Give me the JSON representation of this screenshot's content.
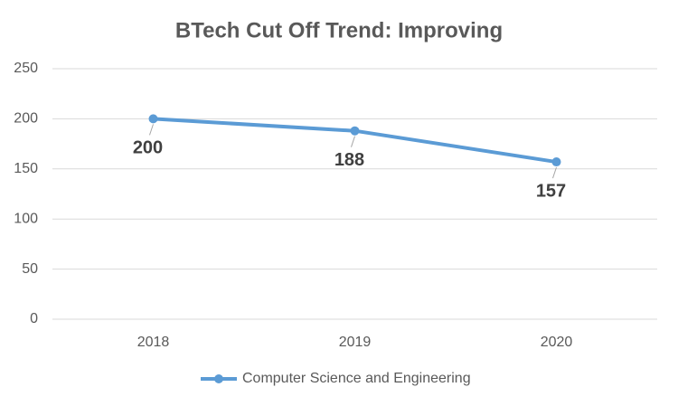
{
  "chart_data": {
    "type": "line",
    "title": "BTech Cut Off Trend: Improving",
    "categories": [
      "2018",
      "2019",
      "2020"
    ],
    "series": [
      {
        "name": "Computer Science and Engineering",
        "color": "#5b9bd5",
        "values": [
          200,
          188,
          157
        ]
      }
    ],
    "ylim": [
      0,
      250
    ],
    "yticks": [
      0,
      50,
      100,
      150,
      200,
      250
    ],
    "grid": true,
    "legend": "bottom"
  }
}
